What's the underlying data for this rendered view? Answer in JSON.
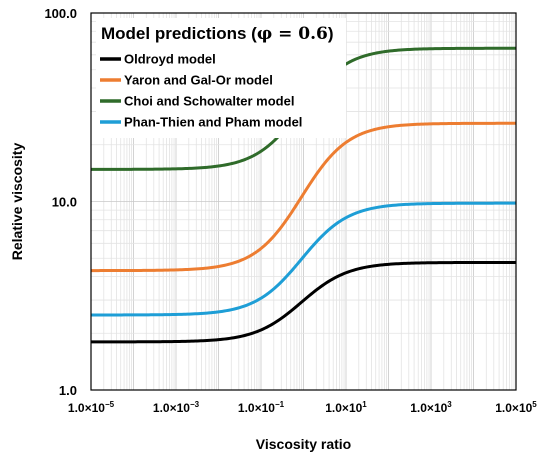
{
  "chart_data": {
    "type": "line",
    "title": "Model predictions (",
    "title_math": "φ = 0.6",
    "title_close": ")",
    "xlabel": "Viscosity ratio",
    "ylabel": "Relative viscosity",
    "x_scale": "log",
    "y_scale": "log",
    "xlim": [
      1e-05,
      100000
    ],
    "ylim": [
      1,
      100
    ],
    "grid": true,
    "legend_position": "top-left",
    "x_ticks": [
      {
        "value": 1e-05,
        "mantissa": "1.0×10",
        "exp": "−5"
      },
      {
        "value": 0.001,
        "mantissa": "1.0×10",
        "exp": "−3"
      },
      {
        "value": 0.1,
        "mantissa": "1.0×10",
        "exp": "−1"
      },
      {
        "value": 10,
        "mantissa": "1.0×10",
        "exp": "1"
      },
      {
        "value": 1000,
        "mantissa": "1.0×10",
        "exp": "3"
      },
      {
        "value": 100000,
        "mantissa": "1.0×10",
        "exp": "5"
      }
    ],
    "y_ticks": [
      {
        "value": 1,
        "label": "1.0"
      },
      {
        "value": 10,
        "label": "10.0"
      },
      {
        "value": 100,
        "label": "100.0"
      }
    ],
    "series": [
      {
        "name": "Oldroyd model",
        "color": "#000000",
        "low": 1.8,
        "high": 4.75,
        "mid": 0.9,
        "width": 0.55
      },
      {
        "name": "Yaron and Gal-Or model",
        "color": "#ED7D31",
        "low": 4.3,
        "high": 26.0,
        "mid": 0.9,
        "width": 0.55
      },
      {
        "name": "Choi and Schowalter model",
        "color": "#2F6B2A",
        "low": 14.8,
        "high": 65.0,
        "mid": 0.9,
        "width": 0.55
      },
      {
        "name": "Phan-Thien and Pham model",
        "color": "#1E9ED6",
        "low": 2.5,
        "high": 9.8,
        "mid": 0.9,
        "width": 0.55
      }
    ]
  }
}
